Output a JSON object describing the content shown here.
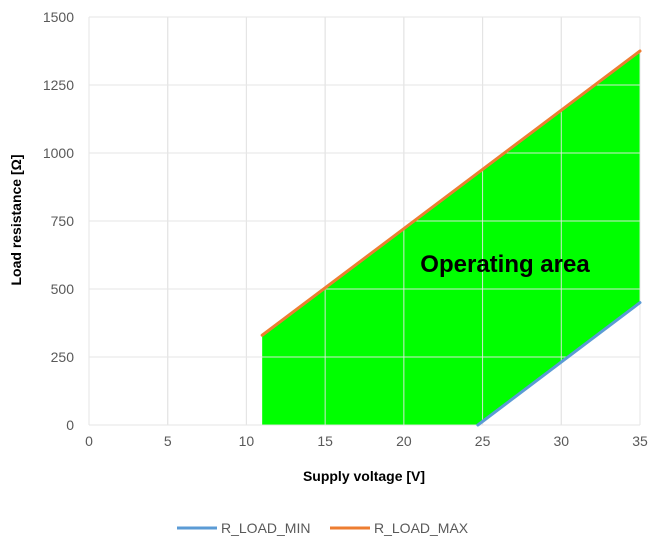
{
  "chart_data": {
    "type": "area",
    "xlabel": "Supply voltage [V]",
    "ylabel": "Load resistance [Ω]",
    "xlim": [
      0,
      35
    ],
    "ylim": [
      0,
      1500
    ],
    "x_ticks": [
      "0",
      "5",
      "10",
      "15",
      "20",
      "25",
      "30",
      "35"
    ],
    "y_ticks": [
      "0",
      "250",
      "500",
      "750",
      "1000",
      "1250",
      "1500"
    ],
    "grid": true,
    "legend_position": "bottom",
    "annotation": "Operating area",
    "series": [
      {
        "name": "R_LOAD_MIN",
        "color": "#5B9BD5",
        "x": [
          24.7,
          35
        ],
        "y": [
          0,
          450
        ]
      },
      {
        "name": "R_LOAD_MAX",
        "color": "#ED7D31",
        "x": [
          11,
          35
        ],
        "y": [
          330,
          1375
        ]
      }
    ],
    "area": {
      "color": "#00FF00",
      "x": [
        11,
        11,
        35,
        35,
        24.7
      ],
      "y": [
        0,
        330,
        1375,
        450,
        0
      ]
    }
  }
}
